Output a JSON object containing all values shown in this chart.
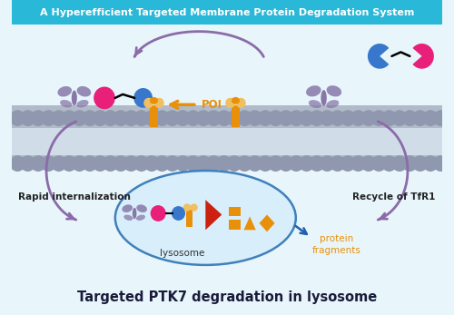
{
  "title_top": "A Hyperefficient Targeted Membrane Protein Degradation System",
  "title_bottom": "Targeted PTK7 degradation in lysosome",
  "title_top_bg": "#29B8D8",
  "title_top_color": "white",
  "bg_color": "#E8F6FC",
  "poi_label": "POI",
  "poi_label_color": "#E8900A",
  "rapid_label": "Rapid internalization",
  "recycle_label": "Recycle of TfR1",
  "lysosome_label": "lysosome",
  "protein_frag_label": "protein\nfragments",
  "protein_frag_color": "#E8900A",
  "arrow_color": "#8B6BA8",
  "blue_arrow_color": "#2060B0",
  "orange_color": "#E8900A",
  "magenta_color": "#E8207A",
  "blue_color": "#3878CC",
  "purple_color": "#8878A8",
  "red_color": "#CC2010",
  "mem_circle_color": "#9098B0",
  "mem_body_color": "#B0BAC8",
  "mem_inner_color": "#D0DCE8"
}
